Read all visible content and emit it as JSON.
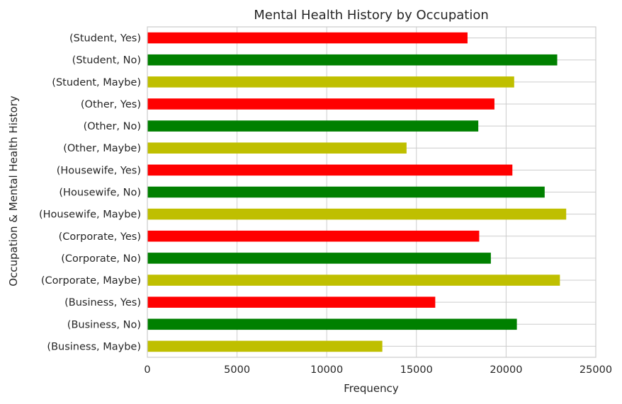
{
  "chart_data": {
    "type": "bar",
    "orientation": "horizontal",
    "title": "Mental Health History by Occupation",
    "xlabel": "Frequency",
    "ylabel": "Occupation & Mental Health History",
    "xlim": [
      0,
      25000
    ],
    "xticks": [
      0,
      5000,
      10000,
      15000,
      20000,
      25000
    ],
    "grid": true,
    "categories": [
      "(Business, Maybe)",
      "(Business, No)",
      "(Business, Yes)",
      "(Corporate, Maybe)",
      "(Corporate, No)",
      "(Corporate, Yes)",
      "(Housewife, Maybe)",
      "(Housewife, No)",
      "(Housewife, Yes)",
      "(Other, Maybe)",
      "(Other, No)",
      "(Other, Yes)",
      "(Student, Maybe)",
      "(Student, No)",
      "(Student, Yes)"
    ],
    "values": [
      13100,
      20600,
      16050,
      23000,
      19150,
      18500,
      23350,
      22150,
      20350,
      14450,
      18450,
      19350,
      20450,
      22850,
      17850
    ],
    "colors": [
      "#bfbf00",
      "#008000",
      "#ff0000",
      "#bfbf00",
      "#008000",
      "#ff0000",
      "#bfbf00",
      "#008000",
      "#ff0000",
      "#bfbf00",
      "#008000",
      "#ff0000",
      "#bfbf00",
      "#008000",
      "#ff0000"
    ]
  }
}
